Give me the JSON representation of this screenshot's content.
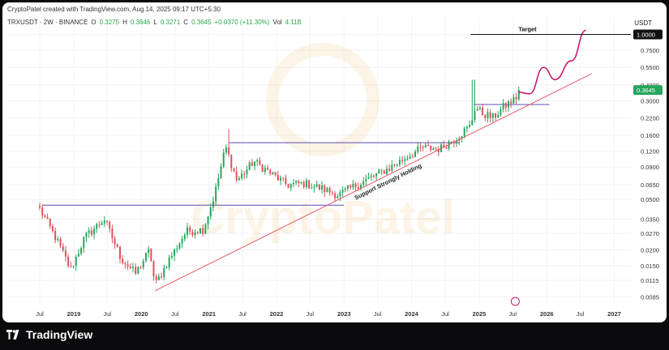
{
  "header": {
    "created_by": "CryptoPatel created with TradingView.com, Aug 14, 2025 09:17 UTC+5:30",
    "symbol": "TRXUSDT · 2W · BINANCE",
    "o_label": "O",
    "o": "0.3275",
    "h_label": "H",
    "h": "0.3646",
    "l_label": "L",
    "l": "0.3271",
    "c_label": "C",
    "c": "0.3645",
    "change": "+0.0370 (+11.30%)",
    "vol_label": "Vol",
    "vol": "4.11B",
    "currency": "USDT"
  },
  "footer": {
    "brand": "TradingView"
  },
  "watermark": "CryptoPatel",
  "colors": {
    "up": "#26a65b",
    "down": "#e0505a",
    "trendline": "#e35b66",
    "resistance": "#5b4fb0",
    "projection": "#c81a6e",
    "target_line": "#111111",
    "price_tag": "#26a65b"
  },
  "chart_data": {
    "type": "candlestick",
    "scale": "log",
    "title": "",
    "ylim": [
      0.0075,
      1.15
    ],
    "y_ticks": [
      "1.0000",
      "0.7500",
      "0.5500",
      "0.4000",
      "0.3000",
      "0.2200",
      "0.1600",
      "0.1200",
      "0.0900",
      "0.0650",
      "0.0500",
      "0.0350",
      "0.0270",
      "0.0200",
      "0.0150",
      "0.0115",
      "0.0085"
    ],
    "x_ticks": [
      "Jul",
      "2019",
      "Jul",
      "2020",
      "Jul",
      "2021",
      "Jul",
      "2022",
      "Jul",
      "2023",
      "Jul",
      "2024",
      "Jul",
      "2025",
      "Jul",
      "2026",
      "Jul",
      "2027"
    ],
    "x_start": "2018-07-01",
    "x_end": "2027-04-01",
    "last_price": "0.3645",
    "target": {
      "label": "Target",
      "value": 1.0
    },
    "annotations": [
      {
        "text": "Support Strongly Holding"
      }
    ],
    "support_trendline": {
      "from": {
        "date": "2020-03-15",
        "price": 0.0095
      },
      "to": {
        "date": "2026-09-01",
        "price": 0.49
      }
    },
    "horizontal_levels": [
      {
        "price": 0.045,
        "from": "2018-07-15",
        "to": "2023-01-01"
      },
      {
        "price": 0.14,
        "from": "2021-04-15",
        "to": "2024-09-15"
      },
      {
        "price": 0.28,
        "from": "2024-12-01",
        "to": "2026-01-15"
      }
    ],
    "projection": [
      {
        "date": "2025-08-01",
        "price": 0.35
      },
      {
        "date": "2025-10-01",
        "price": 0.34
      },
      {
        "date": "2025-12-15",
        "price": 0.55
      },
      {
        "date": "2026-02-15",
        "price": 0.44
      },
      {
        "date": "2026-05-15",
        "price": 0.62
      },
      {
        "date": "2026-08-01",
        "price": 1.08
      }
    ],
    "anchor_closes": [
      {
        "date": "2018-07-01",
        "price": 0.042
      },
      {
        "date": "2018-10-01",
        "price": 0.024
      },
      {
        "date": "2018-12-15",
        "price": 0.014
      },
      {
        "date": "2019-03-01",
        "price": 0.025
      },
      {
        "date": "2019-06-15",
        "price": 0.035
      },
      {
        "date": "2019-09-15",
        "price": 0.017
      },
      {
        "date": "2019-12-01",
        "price": 0.013
      },
      {
        "date": "2020-02-15",
        "price": 0.02
      },
      {
        "date": "2020-03-15",
        "price": 0.0105
      },
      {
        "date": "2020-06-01",
        "price": 0.017
      },
      {
        "date": "2020-09-01",
        "price": 0.028
      },
      {
        "date": "2020-12-01",
        "price": 0.029
      },
      {
        "date": "2021-02-01",
        "price": 0.055
      },
      {
        "date": "2021-04-01",
        "price": 0.13
      },
      {
        "date": "2021-06-01",
        "price": 0.07
      },
      {
        "date": "2021-09-01",
        "price": 0.1
      },
      {
        "date": "2021-12-01",
        "price": 0.08
      },
      {
        "date": "2022-03-01",
        "price": 0.065
      },
      {
        "date": "2022-06-01",
        "price": 0.067
      },
      {
        "date": "2022-09-01",
        "price": 0.061
      },
      {
        "date": "2022-12-01",
        "price": 0.054
      },
      {
        "date": "2023-03-01",
        "price": 0.064
      },
      {
        "date": "2023-06-01",
        "price": 0.075
      },
      {
        "date": "2023-09-01",
        "price": 0.088
      },
      {
        "date": "2023-12-01",
        "price": 0.107
      },
      {
        "date": "2024-03-01",
        "price": 0.128
      },
      {
        "date": "2024-06-01",
        "price": 0.125
      },
      {
        "date": "2024-09-01",
        "price": 0.155
      },
      {
        "date": "2024-11-15",
        "price": 0.19
      },
      {
        "date": "2024-12-10",
        "price": 0.27
      },
      {
        "date": "2025-01-15",
        "price": 0.24
      },
      {
        "date": "2025-03-15",
        "price": 0.22
      },
      {
        "date": "2025-05-15",
        "price": 0.27
      },
      {
        "date": "2025-07-15",
        "price": 0.31
      },
      {
        "date": "2025-08-14",
        "price": 0.3645
      }
    ],
    "notable_highs": [
      {
        "date": "2021-04-15",
        "price": 0.18
      },
      {
        "date": "2024-12-01",
        "price": 0.44
      }
    ]
  }
}
